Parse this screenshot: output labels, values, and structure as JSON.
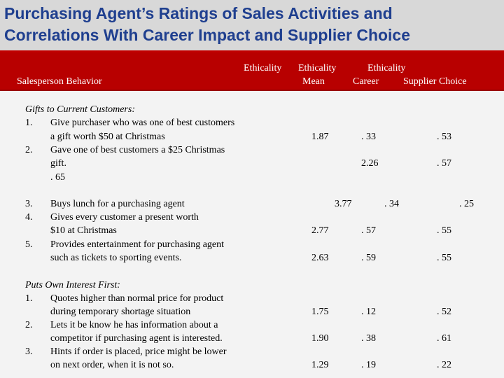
{
  "title": {
    "line1": "Purchasing Agent’s Ratings of Sales Activities and",
    "line2": "Correlations With Career Impact and Supplier Choice"
  },
  "header": {
    "behavior": "Salesperson Behavior",
    "col1_line1": "Ethicality",
    "col1_line2": "Mean",
    "col2_line1": "Ethicality",
    "col2_line2": "Career",
    "col3_line1": "Ethicality",
    "col3_line2": "Supplier Choice"
  },
  "sections": {
    "gifts": {
      "heading": "Gifts to Current Customers:",
      "items": [
        {
          "marker": "1.",
          "lines": [
            "Give purchaser who was one of best customers",
            "a gift worth $50 at Christmas"
          ],
          "mean": "1.87",
          "career": ". 33",
          "supplier": ". 53"
        },
        {
          "marker": "2.",
          "lines": [
            "Gave one of best customers a $25 Christmas",
            "gift.",
            ". 65"
          ],
          "mean": "",
          "career": "2.26",
          "supplier": ". 57"
        },
        {
          "marker": "3.",
          "lines": [
            "Buys lunch for a purchasing agent"
          ],
          "mean": "3.77",
          "career": ". 34",
          "supplier": ". 25"
        },
        {
          "marker": "4.",
          "lines": [
            "Gives every customer a present worth",
            "$10 at Christmas"
          ],
          "mean": "2.77",
          "career": ". 57",
          "supplier": ". 55"
        },
        {
          "marker": "5.",
          "lines": [
            "Provides entertainment for purchasing agent",
            "such as tickets to sporting events."
          ],
          "mean": "2.63",
          "career": ". 59",
          "supplier": ". 55"
        }
      ]
    },
    "interest": {
      "heading": "Puts Own Interest First:",
      "items": [
        {
          "marker": "1.",
          "lines": [
            "Quotes higher than normal price for product",
            "during temporary shortage situation"
          ],
          "mean": "1.75",
          "career": ". 12",
          "supplier": ". 52"
        },
        {
          "marker": "2.",
          "lines": [
            "Lets it be know he has information about a",
            "competitor if purchasing agent is interested."
          ],
          "mean": "1.90",
          "career": ". 38",
          "supplier": ". 61"
        },
        {
          "marker": "3.",
          "lines": [
            "Hints if order is placed, price might be lower",
            "on next order, when it is not so."
          ],
          "mean": "1.29",
          "career": ". 19",
          "supplier": ". 22"
        }
      ]
    }
  },
  "colors": {
    "title_text": "#1f3f8f",
    "title_background": "#d8d8d8",
    "header_background": "#b80000",
    "header_text": "#ffffff",
    "body_background": "#f3f3f3"
  }
}
